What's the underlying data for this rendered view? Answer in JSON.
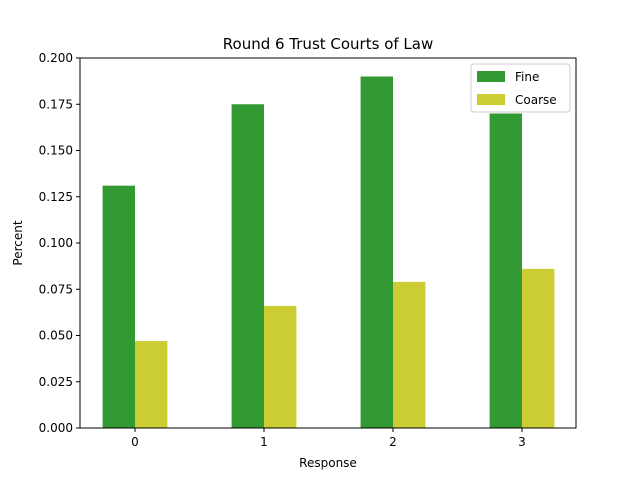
{
  "chart_data": {
    "type": "bar",
    "title": "Round 6 Trust Courts of Law",
    "xlabel": "Response",
    "ylabel": "Percent",
    "categories": [
      "0",
      "1",
      "2",
      "3"
    ],
    "series": [
      {
        "name": "Fine",
        "color": "#339933",
        "values": [
          0.131,
          0.175,
          0.19,
          0.17
        ]
      },
      {
        "name": "Coarse",
        "color": "#cccc33",
        "values": [
          0.047,
          0.066,
          0.079,
          0.086
        ]
      }
    ],
    "ylim": [
      0,
      0.2
    ],
    "yticks": [
      "0.000",
      "0.025",
      "0.050",
      "0.075",
      "0.100",
      "0.125",
      "0.150",
      "0.175",
      "0.200"
    ],
    "grid": false,
    "legend_position": "upper right"
  }
}
